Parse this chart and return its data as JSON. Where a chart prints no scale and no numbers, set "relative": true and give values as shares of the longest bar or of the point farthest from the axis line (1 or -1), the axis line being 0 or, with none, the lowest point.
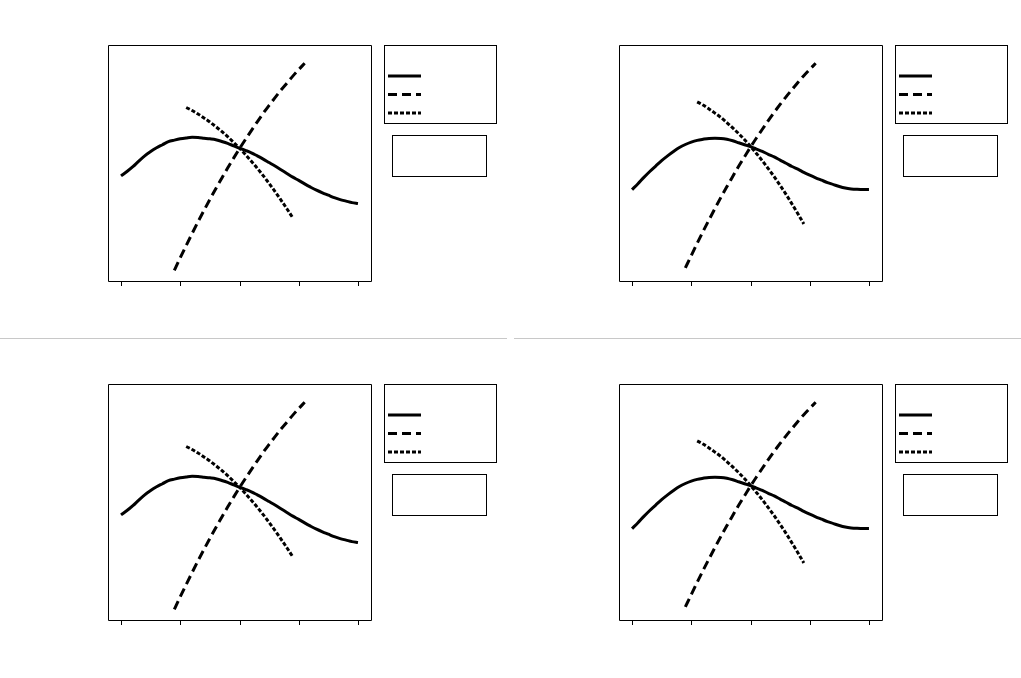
{
  "chart_data": [
    {
      "type": "line",
      "relative": true,
      "categories": [
        null,
        null,
        null,
        null,
        null,
        null,
        null,
        null,
        null,
        null,
        null,
        null,
        null,
        null,
        null,
        null,
        null,
        null,
        null,
        null,
        null,
        null,
        null,
        null,
        null,
        null,
        null,
        null,
        null,
        null,
        null,
        null,
        null,
        null,
        null,
        null,
        null,
        null,
        null,
        null,
        null
      ],
      "series": [
        {
          "color": "#000000",
          "line_style": "solid",
          "values": [
            0.483,
            0.503,
            0.525,
            0.551,
            0.575,
            0.595,
            0.612,
            0.626,
            0.64,
            0.647,
            0.653,
            0.657,
            0.66,
            0.659,
            0.656,
            0.653,
            0.649,
            0.641,
            0.632,
            0.621,
            0.61,
            0.6,
            0.589,
            0.575,
            0.56,
            0.544,
            0.528,
            0.511,
            0.494,
            0.477,
            0.462,
            0.446,
            0.431,
            0.417,
            0.405,
            0.394,
            0.383,
            0.374,
            0.367,
            0.36,
            0.356
          ]
        },
        {
          "color": "#000000",
          "line_style": "dashed",
          "values": [
            null,
            null,
            null,
            null,
            null,
            null,
            null,
            null,
            null,
            0.049,
            0.107,
            0.163,
            0.218,
            0.272,
            0.324,
            0.375,
            0.424,
            0.472,
            0.519,
            0.564,
            0.608,
            0.65,
            0.691,
            0.731,
            0.77,
            0.807,
            0.842,
            0.877,
            0.909,
            0.941,
            0.971,
            1,
            null,
            null,
            null,
            null,
            null,
            null,
            null,
            null,
            null
          ]
        },
        {
          "color": "#000000",
          "line_style": "dotted",
          "values": [
            null,
            null,
            null,
            null,
            null,
            null,
            null,
            null,
            null,
            null,
            null,
            0.797,
            0.783,
            0.767,
            0.749,
            0.73,
            0.709,
            0.687,
            0.663,
            0.637,
            0.61,
            0.581,
            0.55,
            0.518,
            0.484,
            0.448,
            0.411,
            0.372,
            0.332,
            0.29,
            null,
            null,
            null,
            null,
            null,
            null,
            null,
            null,
            null,
            null,
            null
          ]
        }
      ]
    },
    {
      "type": "line",
      "relative": true,
      "categories": [
        null,
        null,
        null,
        null,
        null,
        null,
        null,
        null,
        null,
        null,
        null,
        null,
        null,
        null,
        null,
        null,
        null,
        null,
        null,
        null,
        null,
        null,
        null,
        null,
        null,
        null,
        null,
        null,
        null,
        null,
        null,
        null,
        null,
        null,
        null,
        null,
        null,
        null,
        null,
        null,
        null
      ],
      "series": [
        {
          "color": "#000000",
          "line_style": "solid",
          "values": [
            0.42,
            0.447,
            0.476,
            0.503,
            0.528,
            0.553,
            0.575,
            0.595,
            0.613,
            0.627,
            0.638,
            0.646,
            0.651,
            0.655,
            0.656,
            0.655,
            0.651,
            0.644,
            0.635,
            0.626,
            0.617,
            0.606,
            0.595,
            0.582,
            0.57,
            0.555,
            0.541,
            0.526,
            0.514,
            0.499,
            0.486,
            0.474,
            0.463,
            0.452,
            0.443,
            0.434,
            0.427,
            0.423,
            0.421,
            0.42,
            0.42
          ]
        },
        {
          "color": "#000000",
          "line_style": "dashed",
          "values": [
            null,
            null,
            null,
            null,
            null,
            null,
            null,
            null,
            null,
            0.06,
            0.117,
            0.173,
            0.228,
            0.281,
            0.333,
            0.384,
            0.433,
            0.48,
            0.527,
            0.571,
            0.615,
            0.657,
            0.697,
            0.737,
            0.775,
            0.811,
            0.846,
            0.879,
            0.912,
            0.943,
            0.972,
            1,
            null,
            null,
            null,
            null,
            null,
            null,
            null,
            null,
            null
          ]
        },
        {
          "color": "#000000",
          "line_style": "dotted",
          "values": [
            null,
            null,
            null,
            null,
            null,
            null,
            null,
            null,
            null,
            null,
            null,
            0.823,
            0.808,
            0.79,
            0.771,
            0.751,
            0.728,
            0.703,
            0.677,
            0.649,
            0.618,
            0.586,
            0.552,
            0.516,
            0.479,
            0.439,
            0.398,
            0.354,
            0.309,
            0.262,
            null,
            null,
            null,
            null,
            null,
            null,
            null,
            null,
            null,
            null,
            null
          ]
        }
      ]
    },
    {
      "type": "line",
      "relative": true,
      "categories": [
        null,
        null,
        null,
        null,
        null,
        null,
        null,
        null,
        null,
        null,
        null,
        null,
        null,
        null,
        null,
        null,
        null,
        null,
        null,
        null,
        null,
        null,
        null,
        null,
        null,
        null,
        null,
        null,
        null,
        null,
        null,
        null,
        null,
        null,
        null,
        null,
        null,
        null,
        null,
        null,
        null
      ],
      "series": [
        {
          "color": "#000000",
          "line_style": "solid",
          "values": [
            0.483,
            0.503,
            0.525,
            0.551,
            0.575,
            0.595,
            0.612,
            0.626,
            0.64,
            0.647,
            0.653,
            0.657,
            0.66,
            0.659,
            0.656,
            0.653,
            0.649,
            0.641,
            0.632,
            0.621,
            0.61,
            0.6,
            0.589,
            0.575,
            0.56,
            0.544,
            0.528,
            0.511,
            0.494,
            0.477,
            0.462,
            0.446,
            0.431,
            0.417,
            0.405,
            0.394,
            0.383,
            0.374,
            0.367,
            0.36,
            0.356
          ]
        },
        {
          "color": "#000000",
          "line_style": "dashed",
          "values": [
            null,
            null,
            null,
            null,
            null,
            null,
            null,
            null,
            null,
            0.049,
            0.107,
            0.163,
            0.218,
            0.272,
            0.324,
            0.375,
            0.424,
            0.472,
            0.519,
            0.564,
            0.608,
            0.65,
            0.691,
            0.731,
            0.77,
            0.807,
            0.842,
            0.877,
            0.909,
            0.941,
            0.971,
            1,
            null,
            null,
            null,
            null,
            null,
            null,
            null,
            null,
            null
          ]
        },
        {
          "color": "#000000",
          "line_style": "dotted",
          "values": [
            null,
            null,
            null,
            null,
            null,
            null,
            null,
            null,
            null,
            null,
            null,
            0.797,
            0.783,
            0.767,
            0.749,
            0.73,
            0.709,
            0.687,
            0.663,
            0.637,
            0.61,
            0.581,
            0.55,
            0.518,
            0.484,
            0.448,
            0.411,
            0.372,
            0.332,
            0.29,
            null,
            null,
            null,
            null,
            null,
            null,
            null,
            null,
            null,
            null,
            null
          ]
        }
      ]
    },
    {
      "type": "line",
      "relative": true,
      "categories": [
        null,
        null,
        null,
        null,
        null,
        null,
        null,
        null,
        null,
        null,
        null,
        null,
        null,
        null,
        null,
        null,
        null,
        null,
        null,
        null,
        null,
        null,
        null,
        null,
        null,
        null,
        null,
        null,
        null,
        null,
        null,
        null,
        null,
        null,
        null,
        null,
        null,
        null,
        null,
        null,
        null
      ],
      "series": [
        {
          "color": "#000000",
          "line_style": "solid",
          "values": [
            0.42,
            0.447,
            0.476,
            0.503,
            0.528,
            0.553,
            0.575,
            0.595,
            0.613,
            0.627,
            0.638,
            0.646,
            0.651,
            0.655,
            0.656,
            0.655,
            0.651,
            0.644,
            0.635,
            0.626,
            0.617,
            0.606,
            0.595,
            0.582,
            0.57,
            0.555,
            0.541,
            0.526,
            0.514,
            0.499,
            0.486,
            0.474,
            0.463,
            0.452,
            0.443,
            0.434,
            0.427,
            0.423,
            0.421,
            0.42,
            0.42
          ]
        },
        {
          "color": "#000000",
          "line_style": "dashed",
          "values": [
            null,
            null,
            null,
            null,
            null,
            null,
            null,
            null,
            null,
            0.06,
            0.117,
            0.173,
            0.228,
            0.281,
            0.333,
            0.384,
            0.433,
            0.48,
            0.527,
            0.571,
            0.615,
            0.657,
            0.697,
            0.737,
            0.775,
            0.811,
            0.846,
            0.879,
            0.912,
            0.943,
            0.972,
            1,
            null,
            null,
            null,
            null,
            null,
            null,
            null,
            null,
            null
          ]
        },
        {
          "color": "#000000",
          "line_style": "dotted",
          "values": [
            null,
            null,
            null,
            null,
            null,
            null,
            null,
            null,
            null,
            null,
            null,
            0.823,
            0.808,
            0.79,
            0.771,
            0.751,
            0.728,
            0.703,
            0.677,
            0.649,
            0.618,
            0.586,
            0.552,
            0.516,
            0.479,
            0.439,
            0.398,
            0.354,
            0.309,
            0.262,
            null,
            null,
            null,
            null,
            null,
            null,
            null,
            null,
            null,
            null,
            null
          ]
        }
      ]
    }
  ]
}
